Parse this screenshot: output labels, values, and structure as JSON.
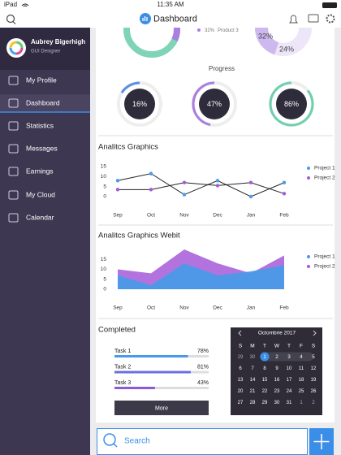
{
  "status_bar": {
    "device": "iPad",
    "time": "11:35 AM"
  },
  "header": {
    "title": "Dashboard"
  },
  "profile": {
    "name": "Aubrey Bigerhigh",
    "role": "GUI Designer"
  },
  "nav": [
    {
      "label": "My Profile",
      "active": false
    },
    {
      "label": "Dashboard",
      "active": true
    },
    {
      "label": "Statistics",
      "active": false
    },
    {
      "label": "Messages",
      "active": false
    },
    {
      "label": "Earnings",
      "active": false
    },
    {
      "label": "My Cloud",
      "active": false
    },
    {
      "label": "Calendar",
      "active": false
    }
  ],
  "left_donut": {
    "legend": {
      "name": "Product 3",
      "value": 32,
      "value_label": "32%",
      "color": "#a97fe0"
    },
    "color": "#7fd4b8"
  },
  "right_donut": {
    "values": [
      32,
      24
    ],
    "value_labels": [
      "32%",
      "24%"
    ],
    "colors": [
      "#cdb8ef",
      "#a46fdc"
    ]
  },
  "progress": {
    "title": "Progress",
    "items": [
      {
        "value": 16,
        "value_label": "16%",
        "color": "#5b8ee6"
      },
      {
        "value": 47,
        "value_label": "47%",
        "color": "#a97fe0"
      },
      {
        "value": 86,
        "value_label": "86%",
        "color": "#6fd0b0"
      }
    ]
  },
  "line_chart": {
    "type": "line",
    "title": "Analitcs Graphics",
    "categories": [
      "Sep",
      "Oct",
      "Nov",
      "Dec",
      "Jan",
      "Feb"
    ],
    "series": [
      {
        "name": "Project 1",
        "color": "#4a9ae8",
        "values": [
          8,
          11.5,
          1,
          8,
          0,
          7
        ]
      },
      {
        "name": "Project 2",
        "color": "#a55ad8",
        "values": [
          3.5,
          3.5,
          7,
          5.5,
          7,
          1.5
        ]
      }
    ],
    "ylim": [
      0,
      15
    ],
    "yticks": [
      0,
      5,
      10,
      15
    ],
    "grid": false,
    "legend": "right"
  },
  "area_chart": {
    "type": "area",
    "title": "Analitcs Graphics Webit",
    "categories": [
      "Sep",
      "Oct",
      "Nov",
      "Dec",
      "Jan",
      "Feb"
    ],
    "series": [
      {
        "name": "Project 1",
        "color": "#4a9ae8",
        "values": [
          7,
          2,
          13,
          7,
          9,
          12
        ]
      },
      {
        "name": "Project 2",
        "color": "#a55ad8",
        "values": [
          10,
          8,
          20,
          13,
          8,
          17
        ]
      }
    ],
    "ylim": [
      0,
      20
    ],
    "yticks": [
      0,
      5,
      10,
      15
    ],
    "grid": false,
    "legend": "right"
  },
  "completed": {
    "title": "Completed",
    "tasks": [
      {
        "name": "Task 1",
        "value": 78,
        "value_label": "78%",
        "color": "#4a9ae8"
      },
      {
        "name": "Task 2",
        "value": 81,
        "value_label": "81%",
        "color": "#6a6fe0"
      },
      {
        "name": "Task 3",
        "value": 43,
        "value_label": "43%",
        "color": "#8a5ad8"
      }
    ],
    "button": "More"
  },
  "calendar": {
    "title": "Octombrie 2017",
    "weekdays": [
      "S",
      "M",
      "T",
      "W",
      "T",
      "F",
      "S"
    ],
    "weeks": [
      [
        29,
        30,
        1,
        2,
        3,
        4,
        5
      ],
      [
        6,
        7,
        8,
        9,
        10,
        11,
        12
      ],
      [
        13,
        14,
        15,
        16,
        17,
        18,
        19
      ],
      [
        20,
        21,
        22,
        23,
        24,
        25,
        26
      ],
      [
        27,
        28,
        29,
        30,
        31,
        1,
        2
      ]
    ],
    "selected_day": 1
  },
  "search": {
    "placeholder": "Search"
  }
}
